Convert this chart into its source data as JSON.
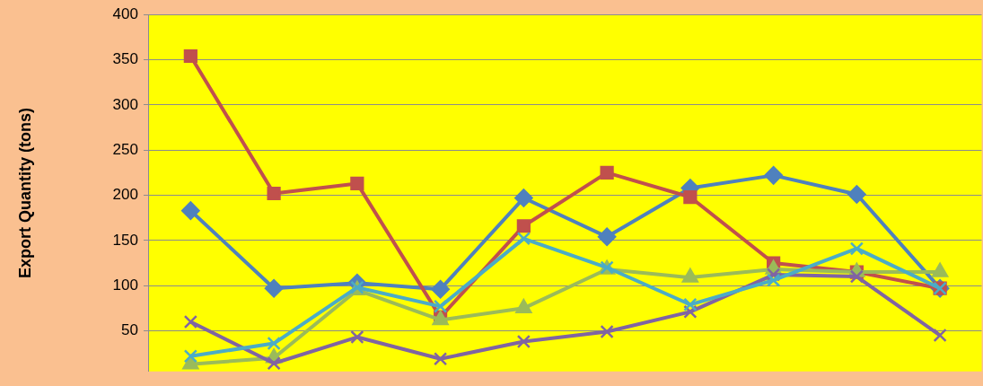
{
  "chart_data": {
    "type": "line",
    "ylabel": "Export Quantity (tons)",
    "categories": [
      null,
      null,
      null,
      null,
      null,
      null,
      null,
      null,
      null,
      null
    ],
    "series": [
      {
        "color": "#4f81bd",
        "marker": "diamond",
        "values": [
          183,
          97,
          103,
          96,
          197,
          154,
          208,
          222,
          201,
          97
        ]
      },
      {
        "color": "#c0504d",
        "marker": "square",
        "values": [
          354,
          202,
          213,
          65,
          166,
          225,
          198,
          125,
          115,
          97
        ]
      },
      {
        "color": "#9bbb59",
        "marker": "triangle",
        "values": [
          13,
          20,
          95,
          62,
          75,
          118,
          109,
          118,
          115,
          115
        ]
      },
      {
        "color": "#8064a2",
        "marker": "cross",
        "values": [
          60,
          14,
          43,
          19,
          38,
          49,
          71,
          112,
          110,
          45
        ]
      },
      {
        "color": "#4bacc6",
        "marker": "cross",
        "values": [
          22,
          36,
          98,
          77,
          152,
          120,
          79,
          106,
          141,
          97
        ]
      }
    ],
    "ylim": [
      5,
      400
    ],
    "yticks": [
      50,
      100,
      150,
      200,
      250,
      300,
      350,
      400
    ],
    "grid": "y",
    "legend": false,
    "tick_labels": "y"
  }
}
